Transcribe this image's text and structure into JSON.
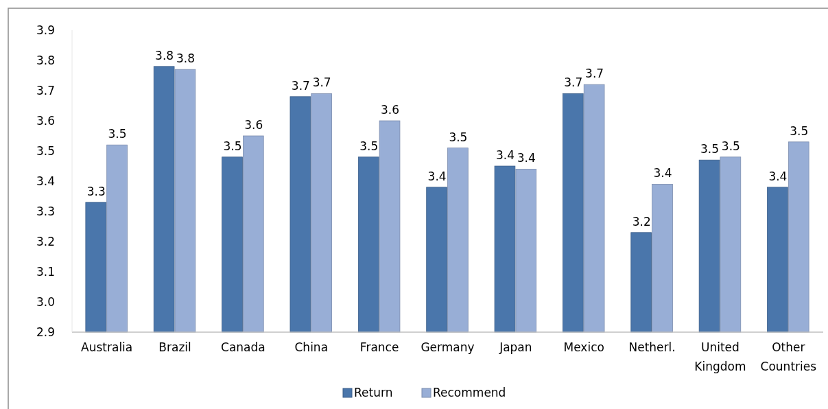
{
  "chart_data": {
    "type": "bar",
    "categories": [
      "Australia",
      "Brazil",
      "Canada",
      "China",
      "France",
      "Germany",
      "Japan",
      "Mexico",
      "Netherl.",
      "United Kingdom",
      "Other Countries"
    ],
    "series": [
      {
        "name": "Return",
        "color": "#4a76ab",
        "values": [
          3.33,
          3.78,
          3.48,
          3.68,
          3.48,
          3.38,
          3.45,
          3.69,
          3.23,
          3.47,
          3.38
        ],
        "value_labels": [
          "3.3",
          "3.8",
          "3.5",
          "3.7",
          "3.5",
          "3.4",
          "3.4",
          "3.7",
          "3.2",
          "3.5",
          "3.4"
        ]
      },
      {
        "name": "Recommend",
        "color": "#98aed6",
        "values": [
          3.52,
          3.77,
          3.55,
          3.69,
          3.6,
          3.51,
          3.44,
          3.72,
          3.39,
          3.48,
          3.53
        ],
        "value_labels": [
          "3.5",
          "3.8",
          "3.6",
          "3.7",
          "3.6",
          "3.5",
          "3.4",
          "3.7",
          "3.4",
          "3.5",
          "3.5"
        ]
      }
    ],
    "ylim": [
      2.9,
      3.9
    ],
    "yticks": [
      "2.9",
      "3.0",
      "3.1",
      "3.2",
      "3.3",
      "3.4",
      "3.5",
      "3.6",
      "3.7",
      "3.8",
      "3.9"
    ],
    "legend": "bottom"
  }
}
